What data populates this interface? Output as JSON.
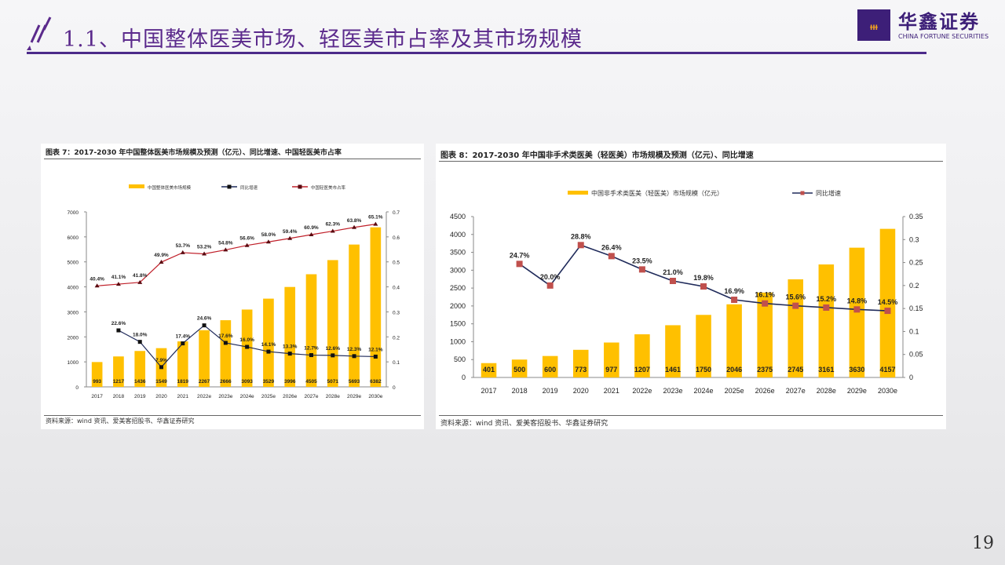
{
  "header": {
    "title": "1.1、中国整体医美市场、轻医美市占率及其市场规模",
    "logo_cn": "华鑫证券",
    "logo_en": "CHINA FORTUNE SECURITIES",
    "accent_color": "#4b2a8a"
  },
  "page_number": "19",
  "chart_data": [
    {
      "type": "bar",
      "title": "图表 7：2017-2030 年中国整体医美市场规模及预测（亿元）、同比增速、中国轻医美市占率",
      "source": "资料来源：wind 资讯、爱美客招股书、华鑫证券研究",
      "categories": [
        "2017",
        "2018",
        "2019",
        "2020",
        "2021",
        "2022e",
        "2023e",
        "2024e",
        "2025e",
        "2026e",
        "2027e",
        "2028e",
        "2029e",
        "2030e"
      ],
      "series": [
        {
          "name": "中国整体医美市场规模",
          "kind": "bar",
          "axis": "left",
          "color": "#ffc000",
          "values": [
            993,
            1217,
            1436,
            1549,
            1819,
            2267,
            2666,
            3093,
            3529,
            3996,
            4505,
            5071,
            5693,
            6382
          ],
          "labels": [
            "993",
            "1217",
            "1436",
            "1549",
            "1819",
            "2267",
            "2666",
            "3093",
            "3529",
            "3996",
            "4505",
            "5071",
            "5693",
            "6382"
          ]
        },
        {
          "name": "同比增速",
          "kind": "line",
          "axis": "right",
          "color": "#1f2a5a",
          "values": [
            null,
            0.226,
            0.18,
            0.079,
            0.174,
            0.246,
            0.176,
            0.16,
            0.141,
            0.133,
            0.127,
            0.126,
            0.123,
            0.121
          ],
          "labels": [
            "",
            "22.6%",
            "18.0%",
            "7.9%",
            "17.4%",
            "24.6%",
            "17.6%",
            "16.0%",
            "14.1%",
            "13.3%",
            "12.7%",
            "12.6%",
            "12.3%",
            "12.1%"
          ]
        },
        {
          "name": "中国轻医美市占率",
          "kind": "line",
          "axis": "right",
          "color": "#c0202a",
          "values": [
            0.404,
            0.411,
            0.418,
            0.499,
            0.537,
            0.532,
            0.548,
            0.566,
            0.58,
            0.594,
            0.609,
            0.623,
            0.638,
            0.651
          ],
          "labels": [
            "40.4%",
            "41.1%",
            "41.8%",
            "49.9%",
            "53.7%",
            "53.2%",
            "54.8%",
            "56.6%",
            "58.0%",
            "59.4%",
            "60.9%",
            "62.3%",
            "63.8%",
            "65.1%"
          ]
        }
      ],
      "ylim": [
        0,
        7000
      ],
      "y_ticks": [
        "0",
        "1000",
        "2000",
        "3000",
        "4000",
        "5000",
        "6000",
        "7000"
      ],
      "y2lim": [
        0,
        0.7
      ],
      "y2_ticks": [
        "0",
        "0.1",
        "0.2",
        "0.3",
        "0.4",
        "0.5",
        "0.6",
        "0.7"
      ],
      "legend": "top"
    },
    {
      "type": "bar",
      "title": "图表 8：2017-2030 年中国非手术类医美（轻医美）市场规模及预测（亿元）、同比增速",
      "source": "资料来源：wind 资讯、爱美客招股书、华鑫证券研究",
      "categories": [
        "2017",
        "2018",
        "2019",
        "2020",
        "2021",
        "2022e",
        "2023e",
        "2024e",
        "2025e",
        "2026e",
        "2027e",
        "2028e",
        "2029e",
        "2030e"
      ],
      "series": [
        {
          "name": "中国非手术类医美（轻医美）市场规模（亿元）",
          "kind": "bar",
          "axis": "left",
          "color": "#ffc000",
          "values": [
            401,
            500,
            600,
            773,
            977,
            1207,
            1461,
            1750,
            2046,
            2375,
            2745,
            3161,
            3630,
            4157
          ],
          "labels": [
            "401",
            "500",
            "600",
            "773",
            "977",
            "1207",
            "1461",
            "1750",
            "2046",
            "2375",
            "2745",
            "3161",
            "3630",
            "4157"
          ]
        },
        {
          "name": "同比增速",
          "kind": "line",
          "axis": "right",
          "color": "#1f2a5a",
          "marker_color": "#c0504d",
          "values": [
            null,
            0.247,
            0.2,
            0.288,
            0.264,
            0.235,
            0.21,
            0.198,
            0.169,
            0.161,
            0.156,
            0.152,
            0.148,
            0.145
          ],
          "labels": [
            "",
            "24.7%",
            "20.0%",
            "28.8%",
            "26.4%",
            "23.5%",
            "21.0%",
            "19.8%",
            "16.9%",
            "16.1%",
            "15.6%",
            "15.2%",
            "14.8%",
            "14.5%"
          ]
        }
      ],
      "ylim": [
        0,
        4500
      ],
      "y_ticks": [
        "0",
        "500",
        "1000",
        "1500",
        "2000",
        "2500",
        "3000",
        "3500",
        "4000",
        "4500"
      ],
      "y2lim": [
        0,
        0.35
      ],
      "y2_ticks": [
        "0",
        "0.05",
        "0.1",
        "0.15",
        "0.2",
        "0.25",
        "0.3",
        "0.35"
      ],
      "legend": "top"
    }
  ]
}
